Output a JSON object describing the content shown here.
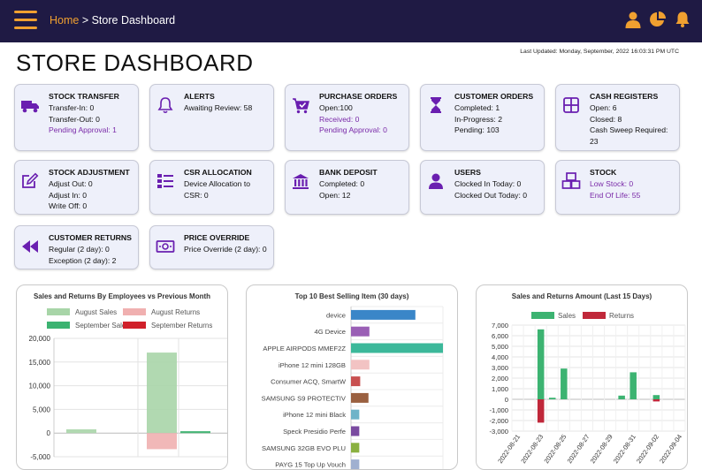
{
  "header": {
    "breadcrumb_home": "Home",
    "breadcrumb_sep": " > ",
    "breadcrumb_current": "Store Dashboard",
    "accent": "#f0a030",
    "bar_color": "#1f1a44"
  },
  "page": {
    "title": "STORE DASHBOARD",
    "last_updated": "Last Updated: Monday, September, 2022 16:03:31 PM UTC"
  },
  "cards": [
    {
      "icon": "delivery-truck-icon",
      "title": "STOCK TRANSFER",
      "lines": [
        {
          "text": "Transfer-In: 0"
        },
        {
          "text": "Transfer-Out: 0"
        },
        {
          "text": "Pending Approval: 1",
          "link": true
        }
      ]
    },
    {
      "icon": "bell-icon",
      "title": "ALERTS",
      "lines": [
        {
          "text": "Awaiting Review: 58"
        }
      ]
    },
    {
      "icon": "shopping-cart-check-icon",
      "title": "PURCHASE ORDERS",
      "lines": [
        {
          "text": "Open:100"
        },
        {
          "text": "Received: 0",
          "link": true
        },
        {
          "text": "Pending Approval: 0",
          "link": true
        }
      ]
    },
    {
      "icon": "hourglass-icon",
      "title": "CUSTOMER ORDERS",
      "lines": [
        {
          "text": "Completed: 1"
        },
        {
          "text": "In-Progress: 2"
        },
        {
          "text": "Pending: 103"
        }
      ]
    },
    {
      "icon": "cash-register-icon",
      "title": "CASH REGISTERS",
      "lines": [
        {
          "text": "Open: 6"
        },
        {
          "text": "Closed: 8"
        },
        {
          "text": "Cash Sweep Required: 23"
        }
      ]
    },
    {
      "icon": "edit-icon",
      "title": "STOCK ADJUSTMENT",
      "lines": [
        {
          "text": "Adjust Out: 0"
        },
        {
          "text": "Adjust In: 0"
        },
        {
          "text": "Write Off: 0"
        }
      ]
    },
    {
      "icon": "device-list-icon",
      "title": "CSR ALLOCATION",
      "lines": [
        {
          "text": "Device Allocation to CSR: 0"
        }
      ]
    },
    {
      "icon": "bank-icon",
      "title": "BANK DEPOSIT",
      "lines": [
        {
          "text": "Completed: 0"
        },
        {
          "text": "Open: 12"
        }
      ]
    },
    {
      "icon": "user-icon",
      "title": "USERS",
      "lines": [
        {
          "text": "Clocked In Today: 0"
        },
        {
          "text": "Clocked Out Today: 0"
        }
      ]
    },
    {
      "icon": "boxes-icon",
      "title": "STOCK",
      "lines": [
        {
          "text": "Low Stock: 0",
          "link": true
        },
        {
          "text": "End Of Life: 55",
          "link": true
        }
      ]
    },
    {
      "icon": "rewind-icon",
      "title": "CUSTOMER RETURNS",
      "lines": [
        {
          "text": "Regular (2 day): 0"
        },
        {
          "text": "Exception (2 day): 2"
        }
      ]
    },
    {
      "icon": "money-bill-icon",
      "title": "PRICE OVERRIDE",
      "lines": [
        {
          "text": "Price Override (2 day): 0"
        }
      ]
    }
  ],
  "chart_data": [
    {
      "type": "bar",
      "title": "Sales and Returns By Employees vs Previous Month",
      "legend": [
        "August Sales",
        "August Returns",
        "September Sales",
        "September Returns"
      ],
      "legend_colors": [
        "#a8d5a8",
        "#f0b0b0",
        "#3cb371",
        "#d0202a"
      ],
      "series": [
        {
          "name": "August Sales",
          "values": [
            800,
            17000,
            300
          ]
        },
        {
          "name": "August Returns",
          "values": [
            0,
            -3400,
            0
          ]
        },
        {
          "name": "September Sales",
          "values": [
            0,
            0,
            400
          ]
        },
        {
          "name": "September Returns",
          "values": [
            0,
            0,
            0
          ]
        }
      ],
      "ylim": [
        -5000,
        20000
      ],
      "yticks": [
        "20,000",
        "15,000",
        "10,000",
        "5,000",
        "0",
        "-5,000"
      ],
      "grid": true,
      "legend_position": "top"
    },
    {
      "type": "bar",
      "orientation": "horizontal",
      "title": "Top 10 Best Selling Item (30 days)",
      "categories": [
        "device",
        "4G Device",
        "APPLE AIRPODS MMEF2Z",
        "iPhone 12 mini 128GB",
        "Consumer ACQ, SmartW",
        "SAMSUNG S9 PROTECTIV",
        "iPhone 12 mini Black",
        "Speck Presidio Perfe",
        "SAMSUNG 32GB EVO PLU",
        "PAYG 15 Top Up Vouch"
      ],
      "values": [
        70,
        20,
        100,
        20,
        10,
        19,
        9,
        9,
        9,
        9
      ],
      "colors": [
        "#3a86c8",
        "#9a5fb5",
        "#3cb89a",
        "#f2c3c3",
        "#c85050",
        "#9a6040",
        "#6fb3c8",
        "#7a4aa0",
        "#8ab040",
        "#a0b0d0"
      ],
      "grid": true
    },
    {
      "type": "bar",
      "title": "Sales and Returns Amount (Last 15 Days)",
      "legend": [
        "Sales",
        "Returns"
      ],
      "legend_colors": [
        "#3cb371",
        "#c0283a"
      ],
      "categories": [
        "2022-08-21",
        "2022-08-22",
        "2022-08-23",
        "2022-08-24",
        "2022-08-25",
        "2022-08-26",
        "2022-08-27",
        "2022-08-28",
        "2022-08-29",
        "2022-08-30",
        "2022-08-31",
        "2022-09-01",
        "2022-09-02",
        "2022-09-03",
        "2022-09-04"
      ],
      "xtick_labels": [
        "2022-08-21",
        "2022-08-23",
        "2022-08-25",
        "2022-08-27",
        "2022-08-29",
        "2022-08-31",
        "2022-09-02",
        "2022-09-04"
      ],
      "series": [
        {
          "name": "Sales",
          "values": [
            0,
            0,
            6600,
            150,
            2900,
            0,
            0,
            0,
            0,
            350,
            2550,
            0,
            400,
            0,
            0
          ]
        },
        {
          "name": "Returns",
          "values": [
            0,
            0,
            -2200,
            0,
            0,
            0,
            0,
            0,
            0,
            0,
            0,
            0,
            -200,
            0,
            0
          ]
        }
      ],
      "ylim": [
        -3000,
        7000
      ],
      "yticks": [
        "7,000",
        "6,000",
        "5,000",
        "4,000",
        "3,000",
        "2,000",
        "1,000",
        "0",
        "-1,000",
        "-2,000",
        "-3,000"
      ],
      "grid": true,
      "legend_position": "top"
    }
  ]
}
